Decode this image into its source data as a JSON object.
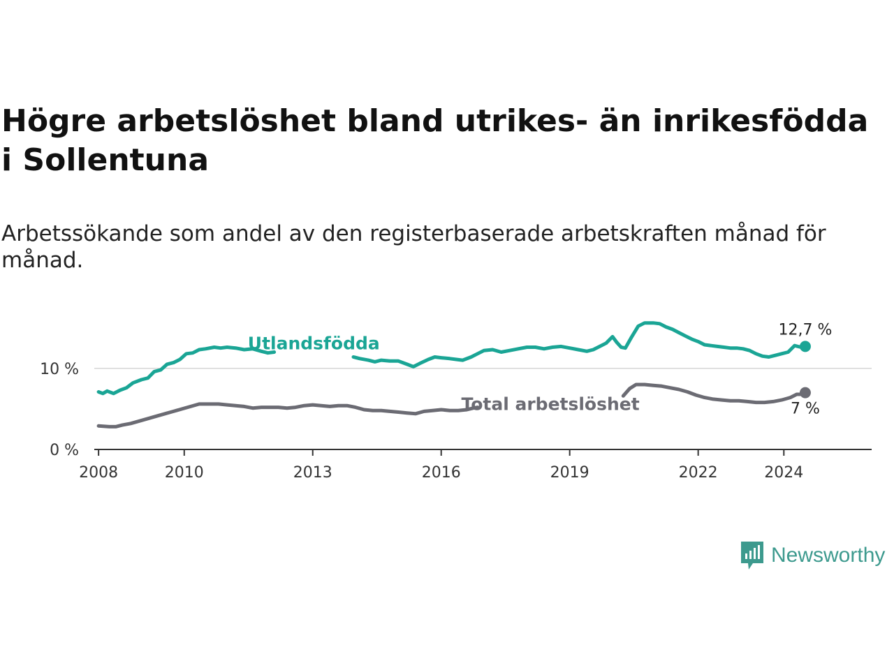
{
  "title": "Högre arbetslöshet bland utrikes- än inrikesfödda i Sollentuna",
  "subtitle": "Arbetssökande som andel av den registerbaserade arbetskraften månad för månad.",
  "brand": {
    "name": "Newsworthy",
    "color": "#3d9a8e",
    "icon": "bar-chart-bubble-icon"
  },
  "chart_data": {
    "type": "line",
    "x_ticks": [
      2008,
      2010,
      2013,
      2016,
      2019,
      2022,
      2024
    ],
    "x_tick_labels": [
      "2008",
      "2010",
      "2013",
      "2016",
      "2019",
      "2022",
      "2024"
    ],
    "xlim": [
      2007.9,
      2026.05
    ],
    "ylim": [
      0,
      16
    ],
    "y_ticks": [
      0,
      10
    ],
    "y_tick_labels": [
      "0 %",
      "10 %"
    ],
    "gridlines": true,
    "series": [
      {
        "name": "Utlandsfödda",
        "color": "#1aa595",
        "end_label": "12,7 %",
        "points": [
          [
            2008.0,
            7.1
          ],
          [
            2008.1,
            6.9
          ],
          [
            2008.2,
            7.2
          ],
          [
            2008.35,
            6.9
          ],
          [
            2008.5,
            7.3
          ],
          [
            2008.65,
            7.6
          ],
          [
            2008.8,
            8.2
          ],
          [
            2009.0,
            8.6
          ],
          [
            2009.15,
            8.8
          ],
          [
            2009.3,
            9.6
          ],
          [
            2009.45,
            9.8
          ],
          [
            2009.6,
            10.5
          ],
          [
            2009.75,
            10.7
          ],
          [
            2009.9,
            11.1
          ],
          [
            2010.05,
            11.8
          ],
          [
            2010.2,
            11.9
          ],
          [
            2010.35,
            12.3
          ],
          [
            2010.5,
            12.4
          ],
          [
            2010.7,
            12.6
          ],
          [
            2010.85,
            12.5
          ],
          [
            2011.0,
            12.6
          ],
          [
            2011.2,
            12.5
          ],
          [
            2011.4,
            12.3
          ],
          [
            2011.6,
            12.4
          ],
          [
            2011.8,
            12.1
          ],
          [
            2011.95,
            11.9
          ],
          [
            2012.1,
            12.0
          ]
        ],
        "points_after_label": [
          [
            2013.95,
            11.4
          ],
          [
            2014.1,
            11.2
          ],
          [
            2014.3,
            11.0
          ],
          [
            2014.45,
            10.8
          ],
          [
            2014.6,
            11.0
          ],
          [
            2014.8,
            10.9
          ],
          [
            2015.0,
            10.9
          ],
          [
            2015.2,
            10.5
          ],
          [
            2015.35,
            10.2
          ],
          [
            2015.5,
            10.6
          ],
          [
            2015.7,
            11.1
          ],
          [
            2015.85,
            11.4
          ],
          [
            2016.0,
            11.3
          ],
          [
            2016.2,
            11.2
          ],
          [
            2016.35,
            11.1
          ],
          [
            2016.5,
            11.0
          ],
          [
            2016.7,
            11.4
          ],
          [
            2016.85,
            11.8
          ],
          [
            2017.0,
            12.2
          ],
          [
            2017.2,
            12.3
          ],
          [
            2017.4,
            12.0
          ],
          [
            2017.6,
            12.2
          ],
          [
            2017.8,
            12.4
          ],
          [
            2018.0,
            12.6
          ],
          [
            2018.2,
            12.6
          ],
          [
            2018.4,
            12.4
          ],
          [
            2018.6,
            12.6
          ],
          [
            2018.8,
            12.7
          ],
          [
            2019.0,
            12.5
          ],
          [
            2019.2,
            12.3
          ],
          [
            2019.4,
            12.1
          ],
          [
            2019.55,
            12.3
          ],
          [
            2019.7,
            12.7
          ],
          [
            2019.85,
            13.1
          ],
          [
            2020.0,
            13.9
          ],
          [
            2020.1,
            13.2
          ],
          [
            2020.2,
            12.6
          ],
          [
            2020.3,
            12.5
          ],
          [
            2020.45,
            13.9
          ],
          [
            2020.6,
            15.2
          ],
          [
            2020.75,
            15.6
          ],
          [
            2020.95,
            15.6
          ],
          [
            2021.1,
            15.5
          ],
          [
            2021.25,
            15.1
          ],
          [
            2021.4,
            14.8
          ],
          [
            2021.55,
            14.4
          ],
          [
            2021.7,
            14.0
          ],
          [
            2021.85,
            13.6
          ],
          [
            2022.0,
            13.3
          ],
          [
            2022.15,
            12.9
          ],
          [
            2022.3,
            12.8
          ],
          [
            2022.45,
            12.7
          ],
          [
            2022.6,
            12.6
          ],
          [
            2022.75,
            12.5
          ],
          [
            2022.9,
            12.5
          ],
          [
            2023.05,
            12.4
          ],
          [
            2023.2,
            12.2
          ],
          [
            2023.35,
            11.8
          ],
          [
            2023.5,
            11.5
          ],
          [
            2023.65,
            11.4
          ],
          [
            2023.8,
            11.6
          ],
          [
            2023.95,
            11.8
          ],
          [
            2024.1,
            12.0
          ],
          [
            2024.25,
            12.8
          ],
          [
            2024.4,
            12.6
          ],
          [
            2024.5,
            12.7
          ]
        ]
      },
      {
        "name": "Total arbetslöshet",
        "color": "#6b6b73",
        "end_label": "7 %",
        "points": [
          [
            2008.0,
            2.9
          ],
          [
            2008.25,
            2.8
          ],
          [
            2008.4,
            2.8
          ],
          [
            2008.55,
            3.0
          ],
          [
            2008.75,
            3.2
          ],
          [
            2008.95,
            3.5
          ],
          [
            2009.15,
            3.8
          ],
          [
            2009.35,
            4.1
          ],
          [
            2009.55,
            4.4
          ],
          [
            2009.75,
            4.7
          ],
          [
            2009.95,
            5.0
          ],
          [
            2010.15,
            5.3
          ],
          [
            2010.35,
            5.6
          ],
          [
            2010.55,
            5.6
          ],
          [
            2010.8,
            5.6
          ],
          [
            2011.0,
            5.5
          ],
          [
            2011.2,
            5.4
          ],
          [
            2011.4,
            5.3
          ],
          [
            2011.6,
            5.1
          ],
          [
            2011.8,
            5.2
          ],
          [
            2012.0,
            5.2
          ],
          [
            2012.2,
            5.2
          ],
          [
            2012.4,
            5.1
          ],
          [
            2012.6,
            5.2
          ],
          [
            2012.8,
            5.4
          ],
          [
            2013.0,
            5.5
          ],
          [
            2013.2,
            5.4
          ],
          [
            2013.4,
            5.3
          ],
          [
            2013.6,
            5.4
          ],
          [
            2013.8,
            5.4
          ],
          [
            2014.0,
            5.2
          ],
          [
            2014.2,
            4.9
          ],
          [
            2014.4,
            4.8
          ],
          [
            2014.6,
            4.8
          ],
          [
            2014.8,
            4.7
          ],
          [
            2015.0,
            4.6
          ],
          [
            2015.2,
            4.5
          ],
          [
            2015.4,
            4.4
          ],
          [
            2015.6,
            4.7
          ],
          [
            2015.8,
            4.8
          ],
          [
            2016.0,
            4.9
          ],
          [
            2016.2,
            4.8
          ],
          [
            2016.4,
            4.8
          ],
          [
            2016.6,
            4.9
          ],
          [
            2016.75,
            5.1
          ],
          [
            2016.85,
            5.2
          ]
        ],
        "points_after_label": [
          [
            2020.25,
            6.6
          ],
          [
            2020.4,
            7.5
          ],
          [
            2020.55,
            8.0
          ],
          [
            2020.75,
            8.0
          ],
          [
            2020.95,
            7.9
          ],
          [
            2021.15,
            7.8
          ],
          [
            2021.35,
            7.6
          ],
          [
            2021.55,
            7.4
          ],
          [
            2021.75,
            7.1
          ],
          [
            2021.95,
            6.7
          ],
          [
            2022.15,
            6.4
          ],
          [
            2022.35,
            6.2
          ],
          [
            2022.55,
            6.1
          ],
          [
            2022.75,
            6.0
          ],
          [
            2022.95,
            6.0
          ],
          [
            2023.15,
            5.9
          ],
          [
            2023.35,
            5.8
          ],
          [
            2023.55,
            5.8
          ],
          [
            2023.75,
            5.9
          ],
          [
            2023.95,
            6.1
          ],
          [
            2024.15,
            6.4
          ],
          [
            2024.3,
            6.8
          ],
          [
            2024.4,
            6.8
          ],
          [
            2024.5,
            7.0
          ]
        ]
      }
    ],
    "inline_labels": [
      "Utlandsfödda",
      "Total arbetslöshet"
    ]
  }
}
